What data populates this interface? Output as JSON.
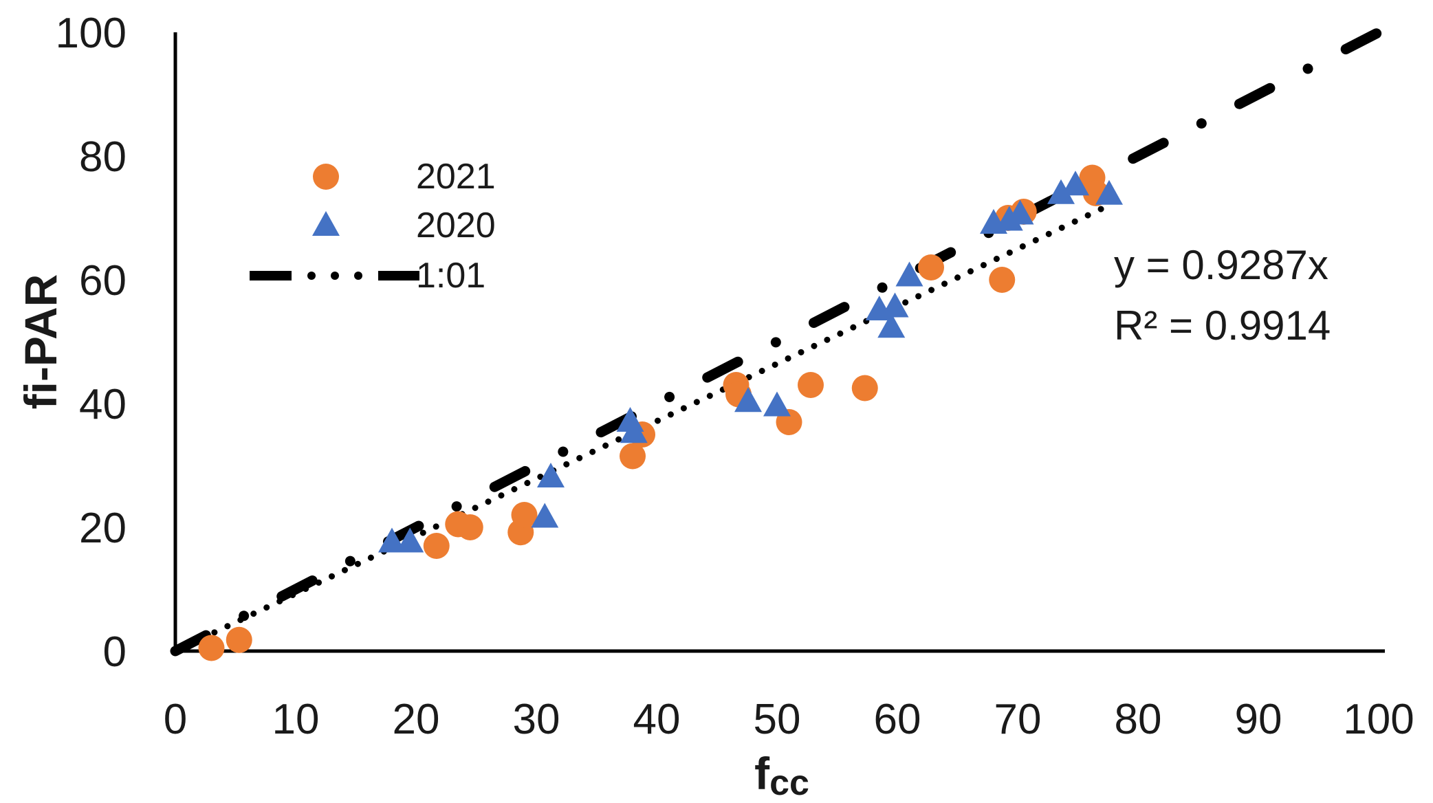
{
  "chart_data": {
    "type": "scatter",
    "title": "",
    "xlabel": "f",
    "xlabel_sub": "cc",
    "ylabel": "fi-PAR",
    "xlim": [
      0,
      100
    ],
    "ylim": [
      0,
      100
    ],
    "xticks": [
      "0",
      "10",
      "20",
      "30",
      "40",
      "50",
      "60",
      "70",
      "80",
      "90",
      "100"
    ],
    "yticks": [
      "0",
      "20",
      "40",
      "60",
      "80",
      "100"
    ],
    "grid": false,
    "legend_position": "top-left",
    "series": [
      {
        "name": "2021",
        "marker": "circle",
        "color": "#ED7D31",
        "points": [
          [
            3,
            0.5
          ],
          [
            5.3,
            1.8
          ],
          [
            21.7,
            17
          ],
          [
            23.5,
            20.5
          ],
          [
            24.5,
            20
          ],
          [
            28.7,
            19.2
          ],
          [
            29,
            22
          ],
          [
            38,
            31.5
          ],
          [
            38.8,
            35
          ],
          [
            46.6,
            43
          ],
          [
            46.8,
            41.5
          ],
          [
            51,
            37
          ],
          [
            52.8,
            43
          ],
          [
            57.3,
            42.5
          ],
          [
            62.8,
            62
          ],
          [
            68.7,
            60
          ],
          [
            69.2,
            70
          ],
          [
            70.5,
            71
          ],
          [
            76.2,
            76.5
          ],
          [
            76.5,
            74
          ]
        ]
      },
      {
        "name": "2020",
        "marker": "triangle",
        "color": "#4472C4",
        "points": [
          [
            18,
            17.5
          ],
          [
            19.5,
            17.5
          ],
          [
            30.7,
            21.5
          ],
          [
            31.2,
            28
          ],
          [
            37.8,
            37
          ],
          [
            38.1,
            35.2
          ],
          [
            47.6,
            40.2
          ],
          [
            50,
            39.5
          ],
          [
            58.5,
            55
          ],
          [
            59.8,
            55.5
          ],
          [
            59.5,
            52.2
          ],
          [
            61,
            60.5
          ],
          [
            68,
            69
          ],
          [
            69.3,
            69.5
          ],
          [
            70.2,
            70.5
          ],
          [
            73.6,
            73.8
          ],
          [
            74.8,
            75.2
          ],
          [
            77.6,
            73.7
          ]
        ]
      },
      {
        "name": "1:01",
        "marker": "line",
        "color": "#000000",
        "line_style": "dash-dot",
        "x": [
          0,
          100
        ],
        "y": [
          0,
          100
        ]
      }
    ],
    "trendline": {
      "series": "combined",
      "style": "dotted",
      "color": "#000000",
      "slope": 0.9287,
      "x_range": [
        0,
        78
      ],
      "equation_text": "y = 0.9287x",
      "r2_text": "R² = 0.9914"
    }
  }
}
